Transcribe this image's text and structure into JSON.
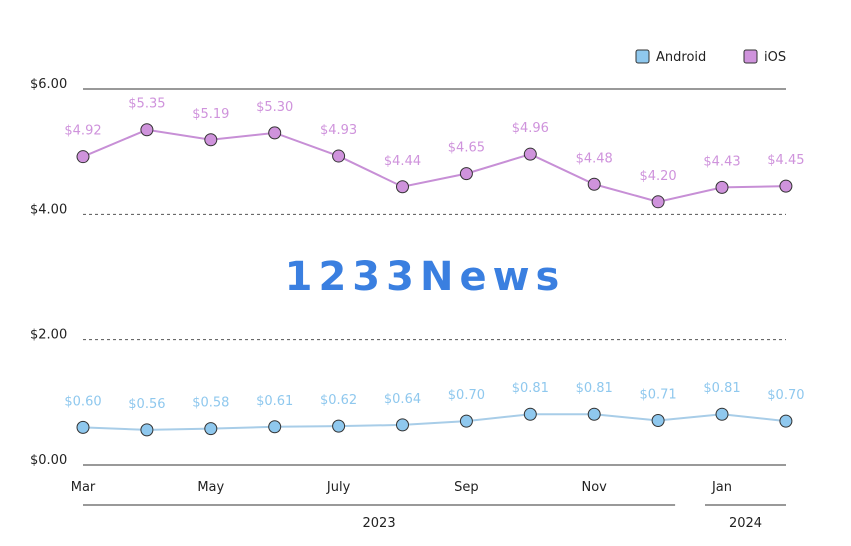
{
  "chart_data": {
    "type": "line",
    "title": "",
    "xlabel": "",
    "ylabel": "",
    "ylim": [
      0,
      6
    ],
    "y_ticks": [
      "$0.00",
      "$2.00",
      "$4.00",
      "$6.00"
    ],
    "y_tick_values": [
      0,
      2,
      4,
      6
    ],
    "x_tick_labels": [
      "Mar",
      "May",
      "July",
      "Sep",
      "Nov",
      "Jan"
    ],
    "x_tick_indices": [
      0,
      2,
      4,
      6,
      8,
      10
    ],
    "year_labels": [
      "2023",
      "2024"
    ],
    "categories": [
      "Mar 2023",
      "Apr 2023",
      "May 2023",
      "Jun 2023",
      "Jul 2023",
      "Aug 2023",
      "Sep 2023",
      "Oct 2023",
      "Nov 2023",
      "Dec 2023",
      "Jan 2024",
      "Feb 2024"
    ],
    "legend_position": "top-right",
    "series": [
      {
        "name": "Android",
        "color": "#8fc8ee",
        "line_color": "#a8cde8",
        "values": [
          0.6,
          0.56,
          0.58,
          0.61,
          0.62,
          0.64,
          0.7,
          0.81,
          0.81,
          0.71,
          0.81,
          0.7
        ],
        "labels": [
          "$0.60",
          "$0.56",
          "$0.58",
          "$0.61",
          "$0.62",
          "$0.64",
          "$0.70",
          "$0.81",
          "$0.81",
          "$0.71",
          "$0.81",
          "$0.70"
        ]
      },
      {
        "name": "iOS",
        "color": "#cf93dc",
        "line_color": "#c78fd6",
        "values": [
          4.92,
          5.35,
          5.19,
          5.3,
          4.93,
          4.44,
          4.65,
          4.96,
          4.48,
          4.2,
          4.43,
          4.45
        ],
        "labels": [
          "$4.92",
          "$5.35",
          "$5.19",
          "$5.30",
          "$4.93",
          "$4.44",
          "$4.65",
          "$4.96",
          "$4.48",
          "$4.20",
          "$4.43",
          "$4.45"
        ]
      }
    ]
  },
  "watermark": "1233News"
}
